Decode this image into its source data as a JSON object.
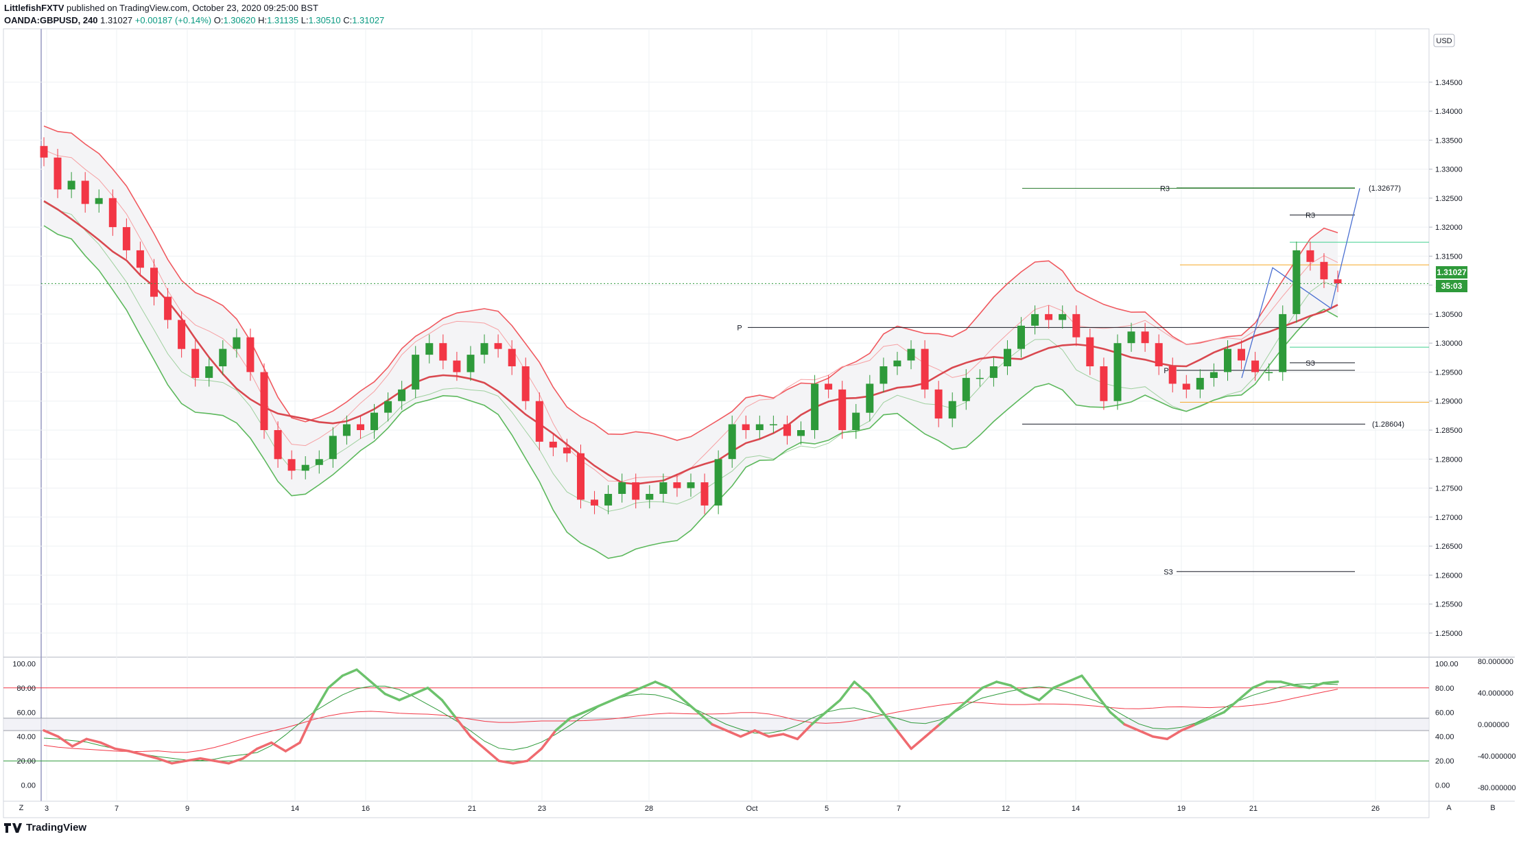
{
  "header": {
    "author": "LittlefishFXTV",
    "published_text": "published on TradingView.com, October 23, 2020 09:25:00 BST",
    "symbol": "OANDA:GBPUSD, 240",
    "last": "1.31027",
    "change": "+0.00187 (+0.14%)",
    "o_label": "O:",
    "o_val": "1.30620",
    "h_label": "H:",
    "h_val": "1.31135",
    "l_label": "L:",
    "l_val": "1.30510",
    "c_label": "C:",
    "c_val": "1.31027"
  },
  "footer": {
    "brand": "TradingView"
  },
  "buttons": {
    "z": "Z",
    "a": "A",
    "b": "B",
    "currency": "USD"
  },
  "colors": {
    "up": "#2e9a3a",
    "down": "#f23645",
    "grid": "#eef0f3",
    "red_band": "#f0595f",
    "green_band": "#5cb85c",
    "price_tag": "#2e9a3a"
  },
  "chart_data": [
    {
      "type": "candlestick",
      "price_axis": [
        "1.34500",
        "1.34000",
        "1.33500",
        "1.33000",
        "1.32500",
        "1.32000",
        "1.31500",
        "1.31000",
        "1.30500",
        "1.30000",
        "1.29500",
        "1.29000",
        "1.28500",
        "1.28000",
        "1.27500",
        "1.27000",
        "1.26500",
        "1.26000",
        "1.25500",
        "1.25000"
      ],
      "ylim": [
        1.2462,
        1.3542
      ],
      "time_axis": [
        "3",
        "7",
        "9",
        "14",
        "16",
        "21",
        "23",
        "28",
        "Oct",
        "5",
        "7",
        "12",
        "14",
        "19",
        "21",
        "26"
      ],
      "current_price": "1.31027",
      "countdown": "35:03",
      "levels": [
        {
          "label": "R3",
          "price": 1.3267
        },
        {
          "label": "(1.32677)",
          "price": 1.32677
        },
        {
          "label": "R3",
          "price": 1.3221
        },
        {
          "label": "P",
          "price": 1.3027
        },
        {
          "label": "P",
          "price": 1.2953
        },
        {
          "label": "S3",
          "price": 1.2966
        },
        {
          "label": "(1.28604)",
          "price": 1.28604
        },
        {
          "label": "S3",
          "price": 1.2606
        }
      ],
      "close_path": [
        1.332,
        1.3265,
        1.328,
        1.324,
        1.325,
        1.32,
        1.316,
        1.313,
        1.308,
        1.304,
        1.299,
        1.294,
        1.296,
        1.299,
        1.301,
        1.295,
        1.285,
        1.28,
        1.278,
        1.279,
        1.28,
        1.284,
        1.286,
        1.285,
        1.288,
        1.29,
        1.292,
        1.298,
        1.3,
        1.297,
        1.295,
        1.298,
        1.3,
        1.299,
        1.296,
        1.29,
        1.283,
        1.282,
        1.281,
        1.273,
        1.272,
        1.274,
        1.276,
        1.273,
        1.274,
        1.276,
        1.275,
        1.276,
        1.272,
        1.28,
        1.286,
        1.285,
        1.286,
        1.286,
        1.284,
        1.285,
        1.293,
        1.292,
        1.285,
        1.288,
        1.293,
        1.296,
        1.297,
        1.299,
        1.292,
        1.287,
        1.29,
        1.294,
        1.294,
        1.296,
        1.299,
        1.303,
        1.305,
        1.304,
        1.305,
        1.301,
        1.296,
        1.29,
        1.3,
        1.302,
        1.3,
        1.296,
        1.293,
        1.292,
        1.294,
        1.295,
        1.299,
        1.297,
        1.295,
        1.295,
        1.305,
        1.316,
        1.314,
        1.311,
        1.3103
      ]
    },
    {
      "type": "line",
      "name": "oscillator",
      "left_axis": [
        "100.00",
        "80.00",
        "60.00",
        "40.00",
        "20.00",
        "0.00"
      ],
      "right_axis": [
        "80.000000",
        "40.000000",
        "0.000000",
        "-40.000000",
        "-80.000000"
      ],
      "right_axis_pct": [
        "100.00",
        "80.00",
        "60.00",
        "40.00",
        "20.00",
        "0.00"
      ],
      "ylim": [
        -3,
        103
      ],
      "hlines": [
        80,
        55,
        45,
        20
      ],
      "main_line": [
        45,
        40,
        32,
        38,
        35,
        30,
        28,
        25,
        22,
        18,
        20,
        22,
        20,
        18,
        22,
        30,
        35,
        28,
        35,
        60,
        80,
        90,
        95,
        85,
        75,
        70,
        75,
        80,
        70,
        55,
        40,
        30,
        20,
        18,
        20,
        30,
        45,
        55,
        60,
        65,
        70,
        75,
        80,
        85,
        80,
        70,
        60,
        50,
        45,
        40,
        45,
        40,
        42,
        38,
        50,
        60,
        70,
        85,
        75,
        60,
        45,
        30,
        40,
        50,
        60,
        70,
        80,
        85,
        82,
        75,
        70,
        80,
        85,
        90,
        75,
        60,
        50,
        45,
        40,
        38,
        45,
        50,
        55,
        60,
        70,
        80,
        85,
        85,
        82,
        80,
        84,
        85
      ]
    }
  ]
}
